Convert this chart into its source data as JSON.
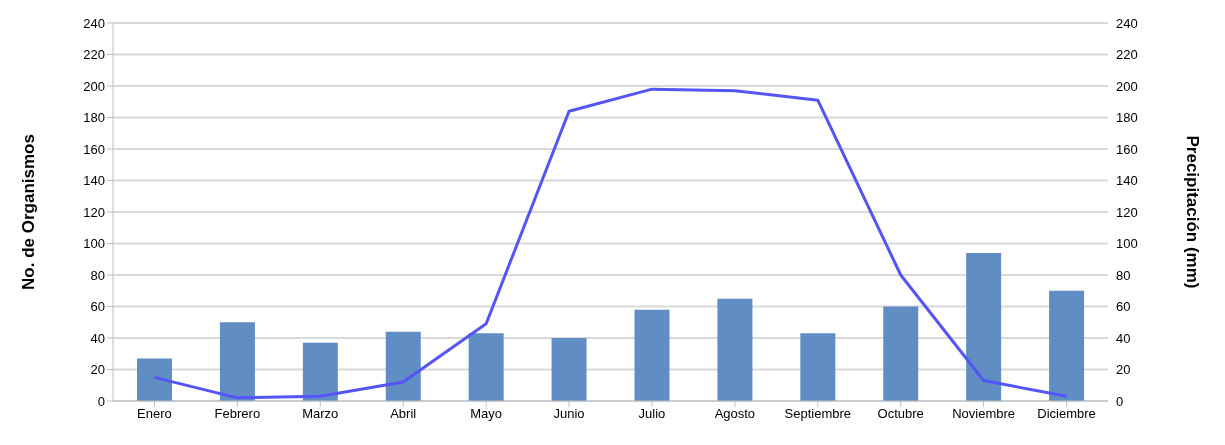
{
  "chart_data": {
    "type": "bar",
    "ylabel": "No. de Organismos",
    "y2label": "Precipitación (mm)",
    "categories": [
      "Enero",
      "Febrero",
      "Marzo",
      "Abril",
      "Mayo",
      "Junio",
      "Julio",
      "Agosto",
      "Septiembre",
      "Octubre",
      "Noviembre",
      "Diciembre"
    ],
    "series": [
      {
        "color": "#5f8dc4",
        "values": [
          27,
          50,
          37,
          44,
          43,
          40,
          58,
          65,
          43,
          60,
          94,
          70
        ]
      },
      {
        "type": "line",
        "axis": "y2",
        "color": "#5555f5",
        "values": [
          15,
          2,
          3,
          12,
          49,
          184,
          198,
          197,
          191,
          80,
          13,
          3
        ]
      }
    ],
    "ylim": [
      0,
      240
    ],
    "yticks": [
      0,
      20,
      40,
      60,
      80,
      100,
      120,
      140,
      160,
      180,
      200,
      220,
      240
    ],
    "y2lim": [
      0,
      240
    ],
    "y2ticks": [
      0,
      20,
      40,
      60,
      80,
      100,
      120,
      140,
      160,
      180,
      200,
      220,
      240
    ],
    "grid": "y",
    "legend": false,
    "marker": "none",
    "line_style": "solid"
  }
}
